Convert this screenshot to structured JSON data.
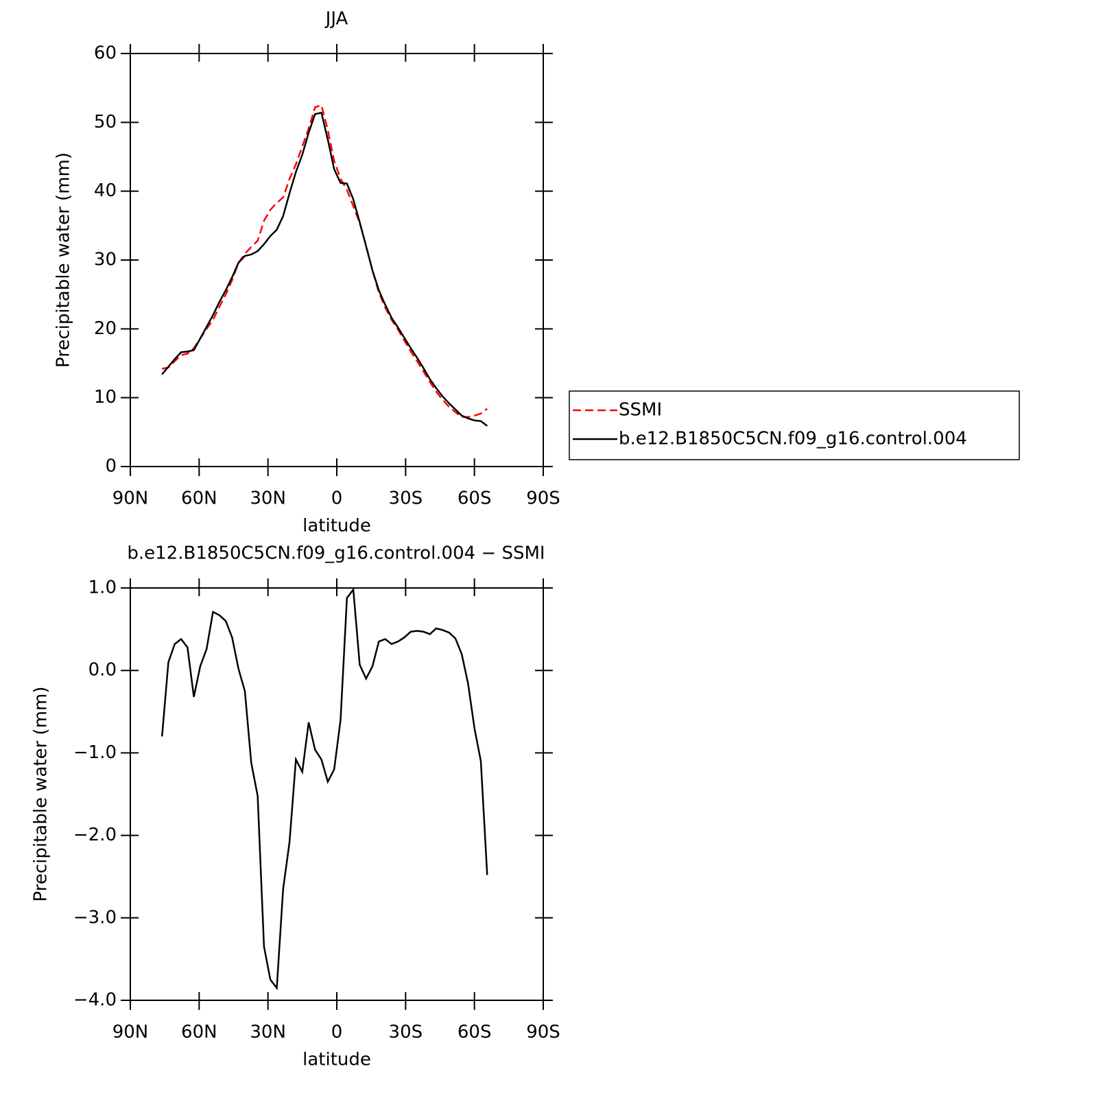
{
  "chart_data": [
    {
      "type": "line",
      "title": "JJA",
      "xlabel": "latitude",
      "ylabel": "Precipitable water (mm)",
      "x": [
        76.2,
        73.42,
        70.64,
        67.86,
        65.08,
        62.3,
        59.52,
        56.74,
        53.96,
        51.18,
        48.4,
        45.62,
        42.84,
        40.06,
        37.28,
        34.5,
        31.72,
        28.94,
        26.16,
        23.38,
        20.6,
        17.82,
        15.04,
        12.26,
        9.48,
        6.7,
        3.92,
        1.14,
        -1.64,
        -4.42,
        -7.2,
        -9.98,
        -12.76,
        -15.54,
        -18.32,
        -21.1,
        -23.88,
        -26.66,
        -29.44,
        -32.22,
        -35,
        -37.78,
        -40.56,
        -43.34,
        -46.12,
        -48.9,
        -51.68,
        -54.46,
        -57.24,
        -60.02,
        -62.8,
        -65.58
      ],
      "series": [
        {
          "name": "SSMI",
          "color": "#ff0000",
          "line_style": "dashed",
          "values": [
            14.2,
            14.4,
            15.3,
            16.2,
            16.4,
            17.2,
            18.6,
            20.0,
            21.3,
            23.2,
            25.0,
            27.1,
            29.6,
            30.9,
            31.9,
            32.8,
            35.7,
            37.3,
            38.3,
            39.1,
            41.8,
            43.9,
            46.5,
            49.1,
            52.2,
            52.5,
            48.9,
            44.4,
            41.8,
            40.2,
            37.8,
            35.4,
            32.1,
            28.5,
            25.3,
            23.1,
            21.3,
            19.9,
            18.3,
            16.7,
            15.3,
            13.8,
            12.3,
            10.9,
            9.7,
            8.7,
            7.9,
            7.2,
            7.2,
            7.4,
            7.7,
            8.4
          ]
        },
        {
          "name": "b.e12.B1850C5CN.f09_g16.control.004",
          "color": "#000000",
          "line_style": "solid",
          "values": [
            13.4,
            14.5,
            15.6,
            16.6,
            16.7,
            16.9,
            18.6,
            20.3,
            22.0,
            23.9,
            25.6,
            27.5,
            29.6,
            30.6,
            30.8,
            31.3,
            32.3,
            33.5,
            34.4,
            36.4,
            39.7,
            42.8,
            45.3,
            48.5,
            51.2,
            51.4,
            47.5,
            43.2,
            41.2,
            41.1,
            38.8,
            35.5,
            32.0,
            28.5,
            25.6,
            23.5,
            21.6,
            20.2,
            18.7,
            17.2,
            15.8,
            14.3,
            12.7,
            11.4,
            10.2,
            9.2,
            8.3,
            7.4,
            7.0,
            6.7,
            6.6,
            5.9
          ]
        }
      ],
      "xlim": [
        90,
        -90
      ],
      "xticks": [
        {
          "value": 90,
          "label": "90N"
        },
        {
          "value": 60,
          "label": "60N"
        },
        {
          "value": 30,
          "label": "30N"
        },
        0,
        {
          "value": -30,
          "label": "30S"
        },
        {
          "value": -60,
          "label": "60S"
        },
        {
          "value": -90,
          "label": "90S"
        }
      ],
      "ylim": [
        0,
        60
      ],
      "yticks": [
        0,
        10,
        20,
        30,
        40,
        50,
        60
      ],
      "legend": "right"
    },
    {
      "type": "line",
      "title": "b.e12.B1850C5CN.f09_g16.control.004 − SSMI",
      "xlabel": "latitude",
      "ylabel": "Precipitable water (mm)",
      "x": [
        76.2,
        73.42,
        70.64,
        67.86,
        65.08,
        62.3,
        59.52,
        56.74,
        53.96,
        51.18,
        48.4,
        45.62,
        42.84,
        40.06,
        37.28,
        34.5,
        31.72,
        28.94,
        26.16,
        23.38,
        20.6,
        17.82,
        15.04,
        12.26,
        9.48,
        6.7,
        3.92,
        1.14,
        -1.64,
        -4.42,
        -7.2,
        -9.98,
        -12.76,
        -15.54,
        -18.32,
        -21.1,
        -23.88,
        -26.66,
        -29.44,
        -32.22,
        -35,
        -37.78,
        -40.56,
        -43.34,
        -46.12,
        -48.9,
        -51.68,
        -54.46,
        -57.24,
        -60.02,
        -62.8,
        -65.58
      ],
      "series": [
        {
          "color": "#000000",
          "line_style": "solid",
          "values": [
            -0.8,
            0.1,
            0.32,
            0.38,
            0.28,
            -0.32,
            0.05,
            0.26,
            0.71,
            0.67,
            0.6,
            0.4,
            0.02,
            -0.25,
            -1.12,
            -1.52,
            -3.35,
            -3.75,
            -3.85,
            -2.65,
            -2.08,
            -1.08,
            -1.23,
            -0.63,
            -0.96,
            -1.08,
            -1.35,
            -1.2,
            -0.6,
            0.88,
            0.98,
            0.07,
            -0.1,
            0.05,
            0.35,
            0.38,
            0.32,
            0.35,
            0.4,
            0.47,
            0.48,
            0.47,
            0.44,
            0.51,
            0.49,
            0.46,
            0.39,
            0.2,
            -0.16,
            -0.7,
            -1.1,
            -2.48
          ]
        }
      ],
      "xlim": [
        90,
        -90
      ],
      "xticks": [
        {
          "value": 90,
          "label": "90N"
        },
        {
          "value": 60,
          "label": "60N"
        },
        {
          "value": 30,
          "label": "30N"
        },
        0,
        {
          "value": -30,
          "label": "30S"
        },
        {
          "value": -60,
          "label": "60S"
        },
        {
          "value": -90,
          "label": "90S"
        }
      ],
      "ylim": [
        -4,
        1
      ],
      "yticks": [
        {
          "value": -4,
          "label": "−4.0"
        },
        {
          "value": -3,
          "label": "−3.0"
        },
        {
          "value": -2,
          "label": "−2.0"
        },
        {
          "value": -1,
          "label": "−1.0"
        },
        {
          "value": 0,
          "label": "0.0"
        },
        {
          "value": 1,
          "label": "1.0"
        }
      ]
    }
  ]
}
